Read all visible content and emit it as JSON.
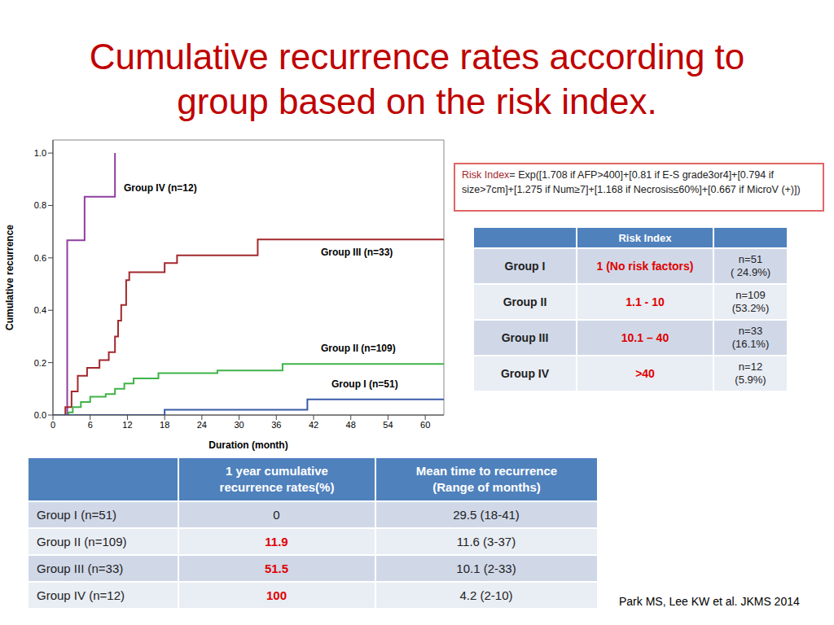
{
  "title": "Cumulative recurrence rates according to group based on the risk index.",
  "chart_data": {
    "type": "line",
    "x_label": "Duration (month)",
    "y_label": "Cumulative recurrence",
    "line_style": "step",
    "legend": false,
    "grid": false,
    "xlim": [
      0,
      63
    ],
    "xticks": [
      0,
      6,
      12,
      18,
      24,
      30,
      36,
      42,
      48,
      54,
      60
    ],
    "ylim": [
      0,
      1.05
    ],
    "yticks": [
      {
        "value": 0,
        "label": "0.0"
      },
      0.2,
      0.4,
      0.6,
      0.8,
      {
        "value": 1,
        "label": "1.0"
      }
    ],
    "series": [
      {
        "name": "Group IV (n=12)",
        "color": "#8e3f9e",
        "x": [
          0,
          2.3,
          5.1,
          10
        ],
        "values": [
          0,
          0.667,
          0.833,
          1.0
        ]
      },
      {
        "name": "Group III (n=33)",
        "color": "#a3282c",
        "x": [
          0,
          2,
          3,
          4,
          5.5,
          7.5,
          9,
          10,
          10.5,
          11,
          11.8,
          12.3,
          18,
          20,
          33,
          63
        ],
        "values": [
          0,
          0.03,
          0.09,
          0.15,
          0.18,
          0.21,
          0.24,
          0.3,
          0.36,
          0.42,
          0.515,
          0.545,
          0.58,
          0.61,
          0.67,
          0.67
        ]
      },
      {
        "name": "Group II (n=109)",
        "color": "#3fb34a",
        "x": [
          0,
          2.5,
          3.2,
          4.5,
          6,
          8.5,
          10,
          11.5,
          13,
          17,
          26.5,
          37,
          63
        ],
        "values": [
          0,
          0.01,
          0.03,
          0.05,
          0.07,
          0.08,
          0.1,
          0.12,
          0.14,
          0.16,
          0.17,
          0.195,
          0.195
        ]
      },
      {
        "name": "Group I (n=51)",
        "color": "#3a5ba8",
        "x": [
          0,
          18,
          41,
          63
        ],
        "values": [
          0,
          0.02,
          0.06,
          0.06
        ]
      }
    ]
  },
  "formula": {
    "label": "Risk Index",
    "text": "= Exp([1.708 if AFP>400]+[0.81 if E-S grade3or4]+[0.794 if size>7cm]+[1.275 if Num≥7]+[1.168 if Necrosis≤60%]+[0.667 if MicroV (+)])"
  },
  "risk_table": {
    "header": [
      "",
      "Risk Index",
      ""
    ],
    "rows": [
      [
        "Group I",
        "1 (No risk factors)",
        "n=51\n( 24.9%)"
      ],
      [
        "Group II",
        "1.1 - 10",
        "n=109\n(53.2%)"
      ],
      [
        "Group III",
        "10.1 – 40",
        "n=33\n(16.1%)"
      ],
      [
        "Group IV",
        ">40",
        "n=12\n(5.9%)"
      ]
    ]
  },
  "summary_table": {
    "header": [
      "",
      "1 year cumulative recurrence rates(%)",
      "Mean time to recurrence (Range of months)"
    ],
    "rows": [
      [
        "Group I (n=51)",
        "0",
        "29.5 (18-41)"
      ],
      [
        "Group II (n=109)",
        "11.9",
        "11.6 (3-37)"
      ],
      [
        "Group III (n=33)",
        "51.5",
        "10.1 (2-33)"
      ],
      [
        "Group IV (n=12)",
        "100",
        "4.2 (2-10)"
      ]
    ]
  },
  "citation": "Park MS, Lee KW et al. JKMS 2014"
}
